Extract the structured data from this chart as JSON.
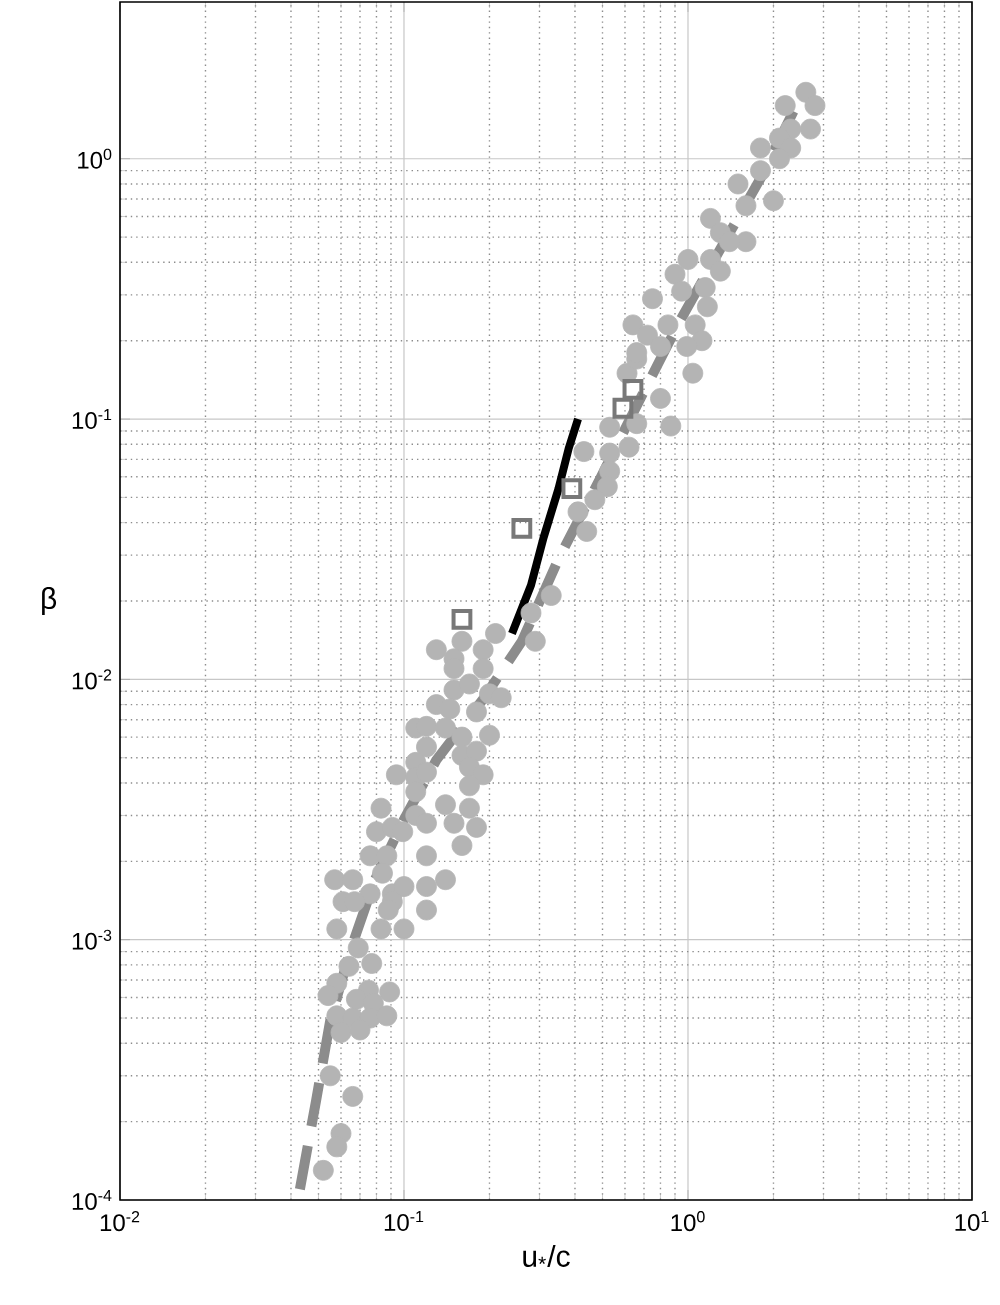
{
  "chart_data": {
    "type": "scatter",
    "xlabel": "u$_{*}$/c",
    "ylabel": "β",
    "log": "xy",
    "grid": true,
    "xlim": [
      0.01,
      10
    ],
    "ylim": [
      0.0001,
      4
    ],
    "xticks": [
      {
        "value": 0.01,
        "label": "10$^{-2}$"
      },
      {
        "value": 0.1,
        "label": "10$^{-1}$"
      },
      {
        "value": 1,
        "label": "10$^{0}$"
      },
      {
        "value": 10,
        "label": "10$^{1}$"
      }
    ],
    "yticks": [
      {
        "value": 0.0001,
        "label": "10$^{-4}$"
      },
      {
        "value": 0.001,
        "label": "10$^{-3}$"
      },
      {
        "value": 0.01,
        "label": "10$^{-2}$"
      },
      {
        "value": 0.1,
        "label": "10$^{-1}$"
      },
      {
        "value": 1,
        "label": "10$^{0}$"
      }
    ],
    "series": [
      {
        "marker": "circle",
        "color": "#b4b4b4",
        "x": [
          0.21,
          0.16,
          0.13,
          0.15,
          0.15,
          0.19,
          0.19,
          0.15,
          0.17,
          0.2,
          0.22,
          0.13,
          0.145,
          0.18,
          0.11,
          0.12,
          0.14,
          0.16,
          0.2,
          0.12,
          0.16,
          0.18,
          0.11,
          0.094,
          0.11,
          0.12,
          0.17,
          0.19,
          0.17,
          0.11,
          0.14,
          0.17,
          0.15,
          0.18,
          0.16,
          0.083,
          0.08,
          0.091,
          0.099,
          0.11,
          0.12,
          0.12,
          0.076,
          0.087,
          0.084,
          0.057,
          0.066,
          0.076,
          0.091,
          0.1,
          0.12,
          0.14,
          0.061,
          0.067,
          0.091,
          0.12,
          0.088,
          0.058,
          0.083,
          0.1,
          0.069,
          0.064,
          0.077,
          0.058,
          0.054,
          0.075,
          0.089,
          0.068,
          0.078,
          0.058,
          0.066,
          0.076,
          0.087,
          0.06,
          0.07,
          0.055,
          0.066,
          0.06,
          0.058,
          0.052,
          0.28,
          0.29,
          0.43,
          0.53,
          0.53,
          0.52,
          0.47,
          0.41,
          0.44,
          0.33,
          0.62,
          0.53,
          0.66,
          0.87,
          0.8,
          0.61,
          0.66,
          2.6,
          2.2,
          2.8,
          2.3,
          2.7,
          2.1,
          1.8,
          2.3,
          2.1,
          1.8,
          1.5,
          2.0,
          1.6,
          1.2,
          1.3,
          1.6,
          1.4,
          1.0,
          1.2,
          1.3,
          0.9,
          0.95,
          1.15,
          0.75,
          1.17,
          0.64,
          0.85,
          1.06,
          0.72,
          0.8,
          1.12,
          0.66,
          0.99,
          1.04
        ],
        "values": [
          0.015,
          0.014,
          0.013,
          0.012,
          0.011,
          0.013,
          0.011,
          0.0091,
          0.0096,
          0.0088,
          0.0085,
          0.008,
          0.0077,
          0.0075,
          0.0065,
          0.0066,
          0.0065,
          0.006,
          0.0061,
          0.0055,
          0.0051,
          0.0053,
          0.0048,
          0.0043,
          0.0042,
          0.0044,
          0.0046,
          0.0043,
          0.0039,
          0.0037,
          0.0033,
          0.0032,
          0.0028,
          0.0027,
          0.0023,
          0.0032,
          0.0026,
          0.0027,
          0.0026,
          0.003,
          0.0028,
          0.0021,
          0.0021,
          0.0021,
          0.0018,
          0.0017,
          0.0017,
          0.0015,
          0.0015,
          0.0016,
          0.0016,
          0.0017,
          0.0014,
          0.0014,
          0.0014,
          0.0013,
          0.0013,
          0.0011,
          0.0011,
          0.0011,
          0.00093,
          0.00079,
          0.00081,
          0.00068,
          0.00061,
          0.00064,
          0.00063,
          0.00059,
          0.00057,
          0.00051,
          0.0005,
          0.0005,
          0.00051,
          0.00044,
          0.00045,
          0.0003,
          0.00025,
          0.00018,
          0.00016,
          0.00013,
          0.018,
          0.014,
          0.075,
          0.074,
          0.063,
          0.055,
          0.049,
          0.044,
          0.037,
          0.021,
          0.078,
          0.093,
          0.096,
          0.094,
          0.12,
          0.15,
          0.17,
          1.8,
          1.6,
          1.6,
          1.3,
          1.3,
          1.2,
          1.1,
          1.1,
          1.0,
          0.9,
          0.8,
          0.69,
          0.66,
          0.59,
          0.52,
          0.48,
          0.48,
          0.41,
          0.41,
          0.37,
          0.36,
          0.31,
          0.32,
          0.29,
          0.27,
          0.23,
          0.23,
          0.23,
          0.21,
          0.19,
          0.2,
          0.18,
          0.19,
          0.15
        ]
      },
      {
        "type": "line",
        "line_style": "solid",
        "color": "#000000",
        "x": [
          0.24,
          0.28,
          0.31,
          0.35,
          0.38,
          0.41
        ],
        "values": [
          0.015,
          0.023,
          0.035,
          0.054,
          0.077,
          0.1
        ]
      },
      {
        "type": "line",
        "line_style": "dashed",
        "color": "#8c8c8c",
        "x": [
          0.043,
          0.049,
          0.055,
          0.065,
          0.079,
          0.1,
          0.13,
          0.19,
          0.26,
          0.35,
          0.49,
          0.68,
          0.94,
          1.3,
          1.8,
          2.6
        ],
        "values": [
          0.00011,
          0.00024,
          0.00049,
          0.00092,
          0.0017,
          0.0029,
          0.0049,
          0.0084,
          0.014,
          0.029,
          0.059,
          0.12,
          0.24,
          0.45,
          0.84,
          1.9
        ]
      },
      {
        "type": "scatter",
        "marker": "square",
        "color": "#787878",
        "x": [
          0.16,
          0.26,
          0.39,
          0.59,
          0.64
        ],
        "values": [
          0.017,
          0.038,
          0.054,
          0.11,
          0.13
        ]
      }
    ]
  }
}
